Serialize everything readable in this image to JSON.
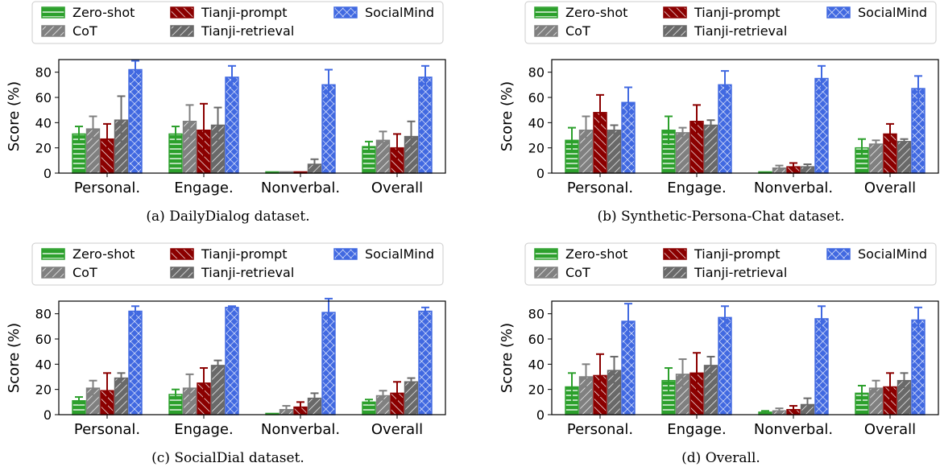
{
  "chart_data": [
    {
      "type": "bar",
      "caption": "(a) DailyDialog dataset.",
      "ylabel": "Score (%)",
      "ylim": [
        0,
        90
      ],
      "yticks": [
        0,
        20,
        40,
        60,
        80
      ],
      "categories": [
        "Personal.",
        "Engage.",
        "Nonverbal.",
        "Overall"
      ],
      "series": [
        {
          "name": "Zero-shot",
          "values": [
            31,
            31,
            1,
            21
          ],
          "errors": [
            6,
            6,
            0,
            4
          ]
        },
        {
          "name": "CoT",
          "values": [
            35,
            41,
            1,
            26
          ],
          "errors": [
            10,
            13,
            0,
            7
          ]
        },
        {
          "name": "Tianji-prompt",
          "values": [
            27,
            34,
            1,
            20
          ],
          "errors": [
            12,
            21,
            0,
            11
          ]
        },
        {
          "name": "Tianji-retrieval",
          "values": [
            42,
            38,
            7,
            29
          ],
          "errors": [
            19,
            14,
            4,
            12
          ]
        },
        {
          "name": "SocialMind",
          "values": [
            82,
            76,
            70,
            76
          ],
          "errors": [
            7,
            9,
            12,
            9
          ]
        }
      ]
    },
    {
      "type": "bar",
      "caption": "(b) Synthetic-Persona-Chat dataset.",
      "ylabel": "Score (%)",
      "ylim": [
        0,
        90
      ],
      "yticks": [
        0,
        20,
        40,
        60,
        80
      ],
      "categories": [
        "Personal.",
        "Engage.",
        "Nonverbal.",
        "Overall"
      ],
      "series": [
        {
          "name": "Zero-shot",
          "values": [
            26,
            34,
            1,
            20
          ],
          "errors": [
            10,
            11,
            0,
            7
          ]
        },
        {
          "name": "CoT",
          "values": [
            34,
            32,
            4,
            23
          ],
          "errors": [
            11,
            4,
            2,
            3
          ]
        },
        {
          "name": "Tianji-prompt",
          "values": [
            48,
            41,
            5,
            31
          ],
          "errors": [
            14,
            13,
            3,
            8
          ]
        },
        {
          "name": "Tianji-retrieval",
          "values": [
            34,
            38,
            5,
            25
          ],
          "errors": [
            4,
            4,
            2,
            2
          ]
        },
        {
          "name": "SocialMind",
          "values": [
            56,
            70,
            75,
            67
          ],
          "errors": [
            12,
            11,
            10,
            10
          ]
        }
      ]
    },
    {
      "type": "bar",
      "caption": "(c) SocialDial dataset.",
      "ylabel": "Score (%)",
      "ylim": [
        0,
        90
      ],
      "yticks": [
        0,
        20,
        40,
        60,
        80
      ],
      "categories": [
        "Personal.",
        "Engage.",
        "Nonverbal.",
        "Overall"
      ],
      "series": [
        {
          "name": "Zero-shot",
          "values": [
            11,
            16,
            1,
            10
          ],
          "errors": [
            3,
            4,
            0,
            2
          ]
        },
        {
          "name": "CoT",
          "values": [
            21,
            21,
            4,
            15
          ],
          "errors": [
            6,
            11,
            3,
            4
          ]
        },
        {
          "name": "Tianji-prompt",
          "values": [
            19,
            25,
            6,
            17
          ],
          "errors": [
            14,
            12,
            4,
            9
          ]
        },
        {
          "name": "Tianji-retrieval",
          "values": [
            29,
            39,
            13,
            26
          ],
          "errors": [
            4,
            4,
            4,
            3
          ]
        },
        {
          "name": "SocialMind",
          "values": [
            82,
            85,
            81,
            82
          ],
          "errors": [
            4,
            1,
            11,
            3
          ]
        }
      ]
    },
    {
      "type": "bar",
      "caption": "(d) Overall.",
      "ylabel": "Score (%)",
      "ylim": [
        0,
        90
      ],
      "yticks": [
        0,
        20,
        40,
        60,
        80
      ],
      "categories": [
        "Personal.",
        "Engage.",
        "Nonverbal.",
        "Overall"
      ],
      "series": [
        {
          "name": "Zero-shot",
          "values": [
            22,
            27,
            2,
            17
          ],
          "errors": [
            11,
            10,
            1,
            6
          ]
        },
        {
          "name": "CoT",
          "values": [
            30,
            32,
            3,
            21
          ],
          "errors": [
            10,
            12,
            2,
            6
          ]
        },
        {
          "name": "Tianji-prompt",
          "values": [
            31,
            33,
            4,
            22
          ],
          "errors": [
            17,
            16,
            3,
            11
          ]
        },
        {
          "name": "Tianji-retrieval",
          "values": [
            35,
            39,
            8,
            27
          ],
          "errors": [
            11,
            7,
            5,
            6
          ]
        },
        {
          "name": "SocialMind",
          "values": [
            74,
            77,
            76,
            75
          ],
          "errors": [
            14,
            9,
            10,
            10
          ]
        }
      ]
    }
  ],
  "legend": [
    {
      "name": "Zero-shot",
      "pattern": "hlines",
      "color": "#2ca02c"
    },
    {
      "name": "Tianji-prompt",
      "pattern": "backslash",
      "color": "#8b0000"
    },
    {
      "name": "SocialMind",
      "pattern": "cross",
      "color": "#4169e1"
    },
    {
      "name": "CoT",
      "pattern": "slash",
      "color": "#808080"
    },
    {
      "name": "Tianji-retrieval",
      "pattern": "slash",
      "color": "#696969"
    }
  ],
  "series_colors": [
    "#2ca02c",
    "#808080",
    "#8b0000",
    "#696969",
    "#4169e1"
  ]
}
